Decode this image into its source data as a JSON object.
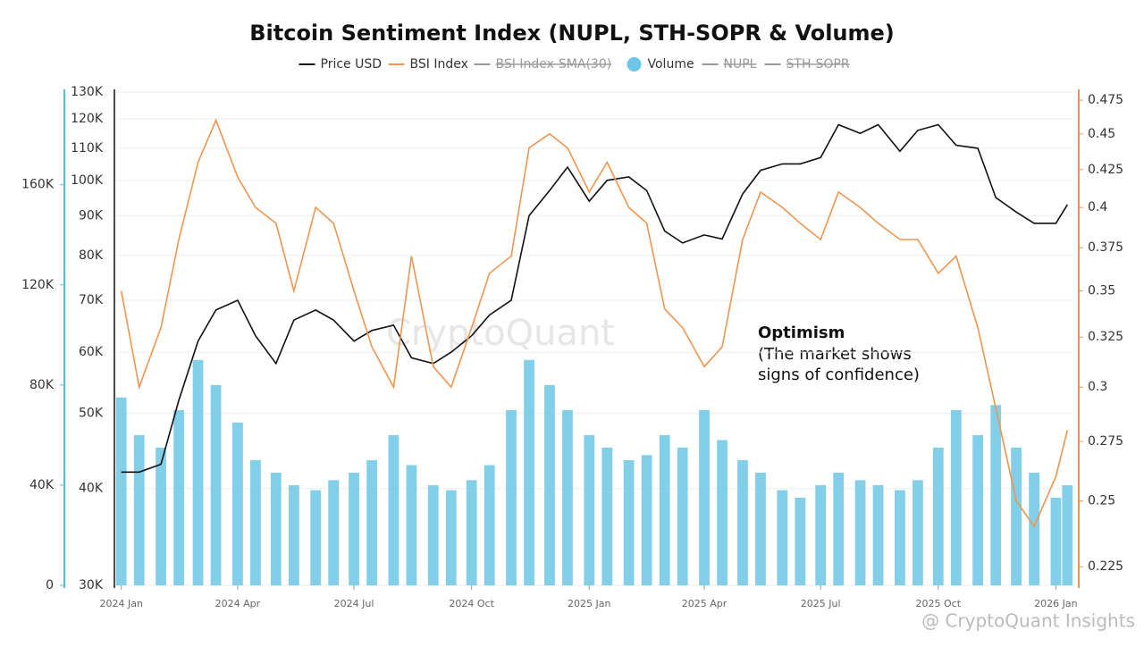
{
  "chart_data": {
    "type": "line",
    "title": "Bitcoin Sentiment Index (NUPL, STH-SOPR & Volume)",
    "legend_hidden": [
      "BSI Index-SMA(30)",
      "NUPL",
      "STH-SOPR"
    ],
    "watermark": "CryptoQuant",
    "footer": "@ CryptoQuant Insights",
    "annotation": {
      "title": "Optimism",
      "lines": [
        "(The market shows",
        "signs of confidence)"
      ]
    },
    "x": [
      "2024-01-01",
      "2024-01-15",
      "2024-02-01",
      "2024-02-15",
      "2024-03-01",
      "2024-03-15",
      "2024-04-01",
      "2024-04-15",
      "2024-05-01",
      "2024-05-15",
      "2024-06-01",
      "2024-06-15",
      "2024-07-01",
      "2024-07-15",
      "2024-08-01",
      "2024-08-15",
      "2024-09-01",
      "2024-09-15",
      "2024-10-01",
      "2024-10-15",
      "2024-11-01",
      "2024-11-15",
      "2024-12-01",
      "2024-12-15",
      "2025-01-01",
      "2025-01-15",
      "2025-02-01",
      "2025-02-15",
      "2025-03-01",
      "2025-03-15",
      "2025-04-01",
      "2025-04-15",
      "2025-05-01",
      "2025-05-15",
      "2025-06-01",
      "2025-06-15",
      "2025-07-01",
      "2025-07-15",
      "2025-08-01",
      "2025-08-15",
      "2025-09-01",
      "2025-09-15",
      "2025-10-01",
      "2025-10-15",
      "2025-11-01",
      "2025-11-15",
      "2025-12-01",
      "2025-12-15",
      "2026-01-01",
      "2026-01-10"
    ],
    "xlim": [
      "2023-12-28",
      "2026-01-14"
    ],
    "xticks": [
      {
        "value": "2024-01-01",
        "label": "2024 Jan"
      },
      {
        "value": "2024-04-01",
        "label": "2024 Apr"
      },
      {
        "value": "2024-07-01",
        "label": "2024 Jul"
      },
      {
        "value": "2024-10-01",
        "label": "2024 Oct"
      },
      {
        "value": "2025-01-01",
        "label": "2025 Jan"
      },
      {
        "value": "2025-04-01",
        "label": "2025 Apr"
      },
      {
        "value": "2025-07-01",
        "label": "2025 Jul"
      },
      {
        "value": "2025-10-01",
        "label": "2025 Oct"
      },
      {
        "value": "2026-01-01",
        "label": "2026 Jan"
      }
    ],
    "ylim": [
      30000,
      130000
    ],
    "log_y": true,
    "grid": true,
    "yticks": [
      {
        "value": 30000,
        "label": "30K"
      },
      {
        "value": 40000,
        "label": "40K"
      },
      {
        "value": 50000,
        "label": "50K"
      },
      {
        "value": 60000,
        "label": "60K"
      },
      {
        "value": 70000,
        "label": "70K"
      },
      {
        "value": 80000,
        "label": "80K"
      },
      {
        "value": 90000,
        "label": "90K"
      },
      {
        "value": 100000,
        "label": "100K"
      },
      {
        "value": 110000,
        "label": "110K"
      },
      {
        "value": 120000,
        "label": "120K"
      },
      {
        "value": 130000,
        "label": "130K"
      }
    ],
    "y2lim": [
      0.2184,
      0.4812
    ],
    "log_y2": true,
    "y2ticks": [
      0.225,
      0.25,
      0.275,
      0.3,
      0.325,
      0.35,
      0.375,
      0.4,
      0.425,
      0.45,
      0.475
    ],
    "y3lim": [
      0,
      197000
    ],
    "y3ticks": [
      0,
      {
        "value": 40000,
        "label": "40K"
      },
      {
        "value": 80000,
        "label": "80K"
      },
      {
        "value": 120000,
        "label": "120K"
      },
      {
        "value": 160000,
        "label": "160K"
      }
    ],
    "series": [
      {
        "name": "Volume",
        "type": "bar",
        "axis": "y3",
        "color": "#6cc7e6",
        "values": [
          75000,
          60000,
          55000,
          70000,
          90000,
          80000,
          65000,
          50000,
          45000,
          40000,
          38000,
          42000,
          45000,
          50000,
          60000,
          48000,
          40000,
          38000,
          42000,
          48000,
          70000,
          90000,
          80000,
          70000,
          60000,
          55000,
          50000,
          52000,
          60000,
          55000,
          70000,
          58000,
          50000,
          45000,
          38000,
          35000,
          40000,
          45000,
          42000,
          40000,
          38000,
          42000,
          55000,
          70000,
          60000,
          72000,
          55000,
          45000,
          35000,
          40000
        ]
      },
      {
        "name": "Price USD",
        "type": "line",
        "color": "#111111",
        "values": [
          42000,
          42000,
          43000,
          52000,
          62000,
          68000,
          70000,
          63000,
          58000,
          66000,
          68000,
          66000,
          62000,
          64000,
          65000,
          59000,
          58000,
          60000,
          63000,
          67000,
          70000,
          90000,
          97000,
          104000,
          94000,
          100000,
          101000,
          97000,
          86000,
          83000,
          85000,
          84000,
          96000,
          103000,
          105000,
          105000,
          107000,
          118000,
          115000,
          118000,
          109000,
          116000,
          118000,
          111000,
          110000,
          95000,
          91000,
          88000,
          88000,
          93000
        ]
      },
      {
        "name": "BSI Index",
        "type": "line",
        "axis": "y2",
        "color": "#f0954f",
        "values": [
          0.35,
          0.3,
          0.33,
          0.38,
          0.43,
          0.46,
          0.42,
          0.4,
          0.39,
          0.35,
          0.4,
          0.39,
          0.35,
          0.32,
          0.3,
          0.37,
          0.31,
          0.3,
          0.33,
          0.36,
          0.37,
          0.44,
          0.45,
          0.44,
          0.41,
          0.43,
          0.4,
          0.39,
          0.34,
          0.33,
          0.31,
          0.32,
          0.38,
          0.41,
          0.4,
          0.39,
          0.38,
          0.41,
          0.4,
          0.39,
          0.38,
          0.38,
          0.36,
          0.37,
          0.33,
          0.29,
          0.25,
          0.24,
          0.26,
          0.28
        ]
      }
    ]
  }
}
